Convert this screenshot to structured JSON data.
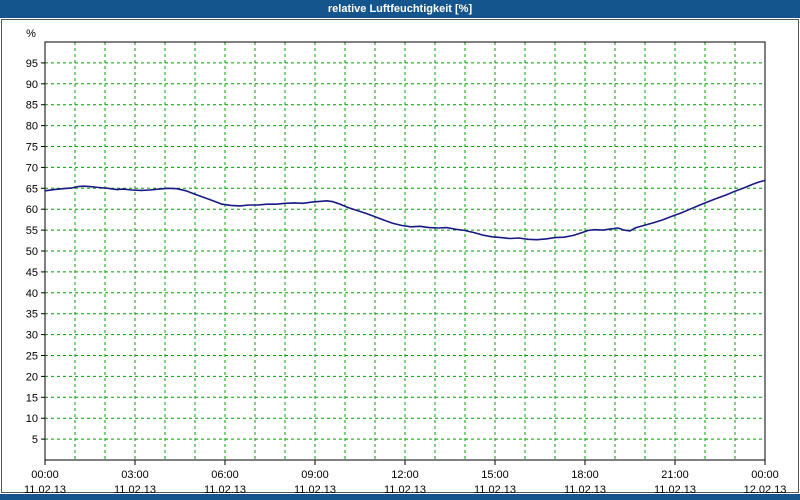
{
  "title_bar": {
    "title": "relative Luftfeuchtigkeit [%]"
  },
  "colors": {
    "titlebar_bg": "#15558e",
    "bottombar_bg": "#15558e",
    "grid": "#00a000",
    "axis": "#000000",
    "line": "#191984",
    "tick_text": "#000000",
    "plot_bg": "#ffffff",
    "outer_border": "#555555"
  },
  "chart_data": {
    "type": "line",
    "title": "relative Luftfeuchtigkeit [%]",
    "xlabel": "",
    "ylabel": "%",
    "ylim": [
      0,
      100
    ],
    "xlim_hours": [
      0,
      24
    ],
    "grid": true,
    "legend": "none",
    "y_ticks": [
      5,
      10,
      15,
      20,
      25,
      30,
      35,
      40,
      45,
      50,
      55,
      60,
      65,
      70,
      75,
      80,
      85,
      90,
      95
    ],
    "x_ticks": [
      {
        "h": 0,
        "time": "00:00",
        "date": "11.02.13"
      },
      {
        "h": 3,
        "time": "03:00",
        "date": "11.02.13"
      },
      {
        "h": 6,
        "time": "06:00",
        "date": "11.02.13"
      },
      {
        "h": 9,
        "time": "09:00",
        "date": "11.02.13"
      },
      {
        "h": 12,
        "time": "12:00",
        "date": "11.02.13"
      },
      {
        "h": 15,
        "time": "15:00",
        "date": "11.02.13"
      },
      {
        "h": 18,
        "time": "18:00",
        "date": "11.02.13"
      },
      {
        "h": 21,
        "time": "21:00",
        "date": "11.02.13"
      },
      {
        "h": 24,
        "time": "00:00",
        "date": "12.02.13"
      }
    ],
    "series": [
      {
        "name": "relative Luftfeuchtigkeit",
        "points": [
          [
            0,
            64.4
          ],
          [
            0.3,
            64.7
          ],
          [
            0.6,
            64.9
          ],
          [
            0.9,
            65.1
          ],
          [
            1.1,
            65.4
          ],
          [
            1.3,
            65.5
          ],
          [
            1.5,
            65.4
          ],
          [
            1.8,
            65.2
          ],
          [
            2.1,
            65.0
          ],
          [
            2.4,
            64.7
          ],
          [
            2.6,
            64.8
          ],
          [
            2.9,
            64.6
          ],
          [
            3.2,
            64.5
          ],
          [
            3.5,
            64.6
          ],
          [
            3.8,
            64.8
          ],
          [
            4.1,
            65.0
          ],
          [
            4.4,
            64.9
          ],
          [
            4.7,
            64.4
          ],
          [
            5.0,
            63.6
          ],
          [
            5.3,
            62.8
          ],
          [
            5.6,
            62.0
          ],
          [
            5.9,
            61.2
          ],
          [
            6.2,
            60.9
          ],
          [
            6.5,
            60.8
          ],
          [
            6.8,
            61.0
          ],
          [
            7.1,
            61.0
          ],
          [
            7.4,
            61.2
          ],
          [
            7.7,
            61.2
          ],
          [
            8.0,
            61.4
          ],
          [
            8.3,
            61.5
          ],
          [
            8.6,
            61.4
          ],
          [
            8.9,
            61.7
          ],
          [
            9.2,
            61.9
          ],
          [
            9.4,
            62.0
          ],
          [
            9.6,
            61.8
          ],
          [
            9.8,
            61.3
          ],
          [
            10.1,
            60.4
          ],
          [
            10.4,
            59.7
          ],
          [
            10.7,
            59.0
          ],
          [
            11.0,
            58.2
          ],
          [
            11.3,
            57.4
          ],
          [
            11.6,
            56.6
          ],
          [
            11.9,
            56.1
          ],
          [
            12.2,
            55.8
          ],
          [
            12.5,
            55.9
          ],
          [
            12.8,
            55.6
          ],
          [
            13.1,
            55.5
          ],
          [
            13.4,
            55.6
          ],
          [
            13.7,
            55.2
          ],
          [
            14.0,
            54.9
          ],
          [
            14.3,
            54.4
          ],
          [
            14.6,
            53.8
          ],
          [
            14.9,
            53.4
          ],
          [
            15.2,
            53.2
          ],
          [
            15.5,
            53.0
          ],
          [
            15.8,
            53.1
          ],
          [
            16.1,
            52.8
          ],
          [
            16.4,
            52.7
          ],
          [
            16.7,
            52.9
          ],
          [
            17.0,
            53.2
          ],
          [
            17.3,
            53.3
          ],
          [
            17.6,
            53.7
          ],
          [
            17.9,
            54.4
          ],
          [
            18.1,
            54.9
          ],
          [
            18.3,
            55.1
          ],
          [
            18.6,
            55.0
          ],
          [
            18.9,
            55.3
          ],
          [
            19.1,
            55.5
          ],
          [
            19.3,
            55.0
          ],
          [
            19.5,
            54.8
          ],
          [
            19.7,
            55.6
          ],
          [
            20.0,
            56.2
          ],
          [
            20.3,
            56.8
          ],
          [
            20.6,
            57.5
          ],
          [
            20.9,
            58.3
          ],
          [
            21.2,
            59.1
          ],
          [
            21.5,
            60.0
          ],
          [
            21.8,
            60.9
          ],
          [
            22.1,
            61.8
          ],
          [
            22.4,
            62.6
          ],
          [
            22.7,
            63.4
          ],
          [
            23.0,
            64.3
          ],
          [
            23.3,
            65.1
          ],
          [
            23.6,
            66.0
          ],
          [
            23.8,
            66.5
          ],
          [
            24,
            66.9
          ]
        ]
      }
    ]
  }
}
